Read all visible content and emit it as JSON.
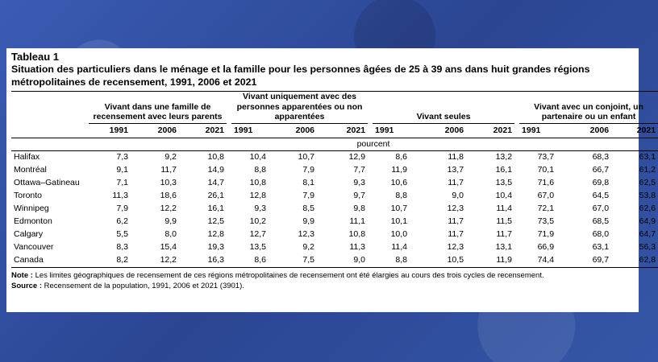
{
  "title": "Tableau 1",
  "subtitle": "Situation des particuliers dans le ménage et la famille pour les personnes âgées de 25 à 39 ans dans huit grandes régions métropolitaines de recensement, 1991, 2006 et 2021",
  "groups": [
    "Vivant dans une famille de recensement avec leurs parents",
    "Vivant uniquement avec des personnes apparentées ou non apparentées",
    "Vivant seules",
    "Vivant avec un conjoint, un partenaire ou un enfant"
  ],
  "years": [
    "1991",
    "2006",
    "2021"
  ],
  "unit": "pourcent",
  "rows": [
    {
      "label": "Halifax",
      "values": [
        "7,3",
        "9,2",
        "10,8",
        "10,4",
        "10,7",
        "12,9",
        "8,6",
        "11,8",
        "13,2",
        "73,7",
        "68,3",
        "63,1"
      ]
    },
    {
      "label": "Montréal",
      "values": [
        "9,1",
        "11,7",
        "14,9",
        "8,8",
        "7,9",
        "7,7",
        "11,9",
        "13,7",
        "16,1",
        "70,1",
        "66,7",
        "61,2"
      ]
    },
    {
      "label": "Ottawa–Gatineau",
      "values": [
        "7,1",
        "10,3",
        "14,7",
        "10,8",
        "8,1",
        "9,3",
        "10,6",
        "11,7",
        "13,5",
        "71,6",
        "69,8",
        "62,5"
      ]
    },
    {
      "label": "Toronto",
      "values": [
        "11,3",
        "18,6",
        "26,1",
        "12,8",
        "7,9",
        "9,7",
        "8,8",
        "9,0",
        "10,4",
        "67,0",
        "64,5",
        "53,8"
      ]
    },
    {
      "label": "Winnipeg",
      "values": [
        "7,9",
        "12,2",
        "16,1",
        "9,3",
        "8,5",
        "9,8",
        "10,7",
        "12,3",
        "11,4",
        "72,1",
        "67,0",
        "62,6"
      ]
    },
    {
      "label": "Edmonton",
      "values": [
        "6,2",
        "9,9",
        "12,5",
        "10,2",
        "9,9",
        "11,1",
        "10,1",
        "11,7",
        "11,5",
        "73,5",
        "68,5",
        "64,9"
      ]
    },
    {
      "label": "Calgary",
      "values": [
        "5,5",
        "8,0",
        "12,8",
        "12,7",
        "12,3",
        "10,8",
        "10,0",
        "11,7",
        "11,7",
        "71,9",
        "68,0",
        "64,7"
      ]
    },
    {
      "label": "Vancouver",
      "values": [
        "8,3",
        "15,4",
        "19,3",
        "13,5",
        "9,2",
        "11,3",
        "11,4",
        "12,3",
        "13,1",
        "66,9",
        "63,1",
        "56,3"
      ]
    },
    {
      "label": "Canada",
      "values": [
        "8,2",
        "12,2",
        "16,3",
        "8,6",
        "7,5",
        "9,0",
        "8,8",
        "10,5",
        "11,9",
        "74,4",
        "69,7",
        "62,8"
      ]
    }
  ],
  "note": {
    "label": "Note :",
    "text": "Les limites géographiques de recensement de ces régions métropolitaines de recensement ont été élargies au cours des trois cycles de recensement."
  },
  "source": {
    "label": "Source :",
    "text": "Recensement de la population, 1991, 2006 et 2021 (3901)."
  }
}
